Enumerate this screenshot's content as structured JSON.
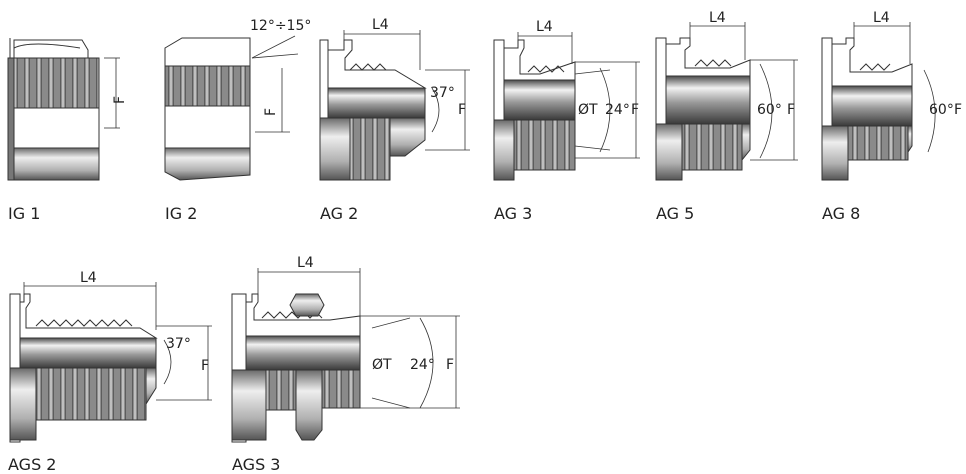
{
  "captions": {
    "ig1": "IG 1",
    "ig2": "IG 2",
    "ag2": "AG 2",
    "ag3": "AG 3",
    "ag5": "AG 5",
    "ag8": "AG 8",
    "ags2": "AGS 2",
    "ags3": "AGS 3"
  },
  "labels": {
    "F": "F",
    "L4": "L4",
    "angle_ig2": "12°÷15°",
    "angle_37": "37°",
    "angle_24": "24°",
    "angle_60": "60°",
    "dia_t": "ØT"
  },
  "colors": {
    "metal_dark": "#5c5c5c",
    "metal_mid": "#9a9a9a",
    "metal_light": "#e6e6e6",
    "outline": "#333333"
  }
}
